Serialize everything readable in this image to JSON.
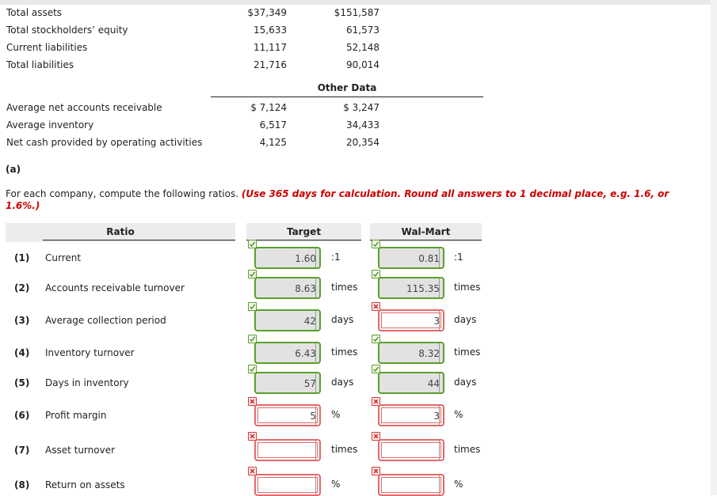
{
  "balance": {
    "rows": [
      {
        "label": "Total assets",
        "target": "$37,349",
        "walmart": "$151,587"
      },
      {
        "label": "Total stockholders’ equity",
        "target": "15,633",
        "walmart": "61,573"
      },
      {
        "label": "Current liabilities",
        "target": "11,117",
        "walmart": "52,148"
      },
      {
        "label": "Total liabilities",
        "target": "21,716",
        "walmart": "90,014"
      }
    ]
  },
  "other": {
    "heading": "Other Data",
    "rows": [
      {
        "label": "Average net accounts receivable",
        "target": "$ 7,124",
        "walmart": "$ 3,247"
      },
      {
        "label": "Average inventory",
        "target": "6,517",
        "walmart": "34,433"
      },
      {
        "label": "Net cash provided by operating activities",
        "target": "4,125",
        "walmart": "20,354"
      }
    ]
  },
  "section": {
    "tag": "(a)",
    "instruction_plain": "For each company, compute the following ratios. ",
    "instruction_red": "(Use 365 days for calculation. Round all answers to 1 decimal place, e.g. 1.6, or 1.6%.)"
  },
  "table": {
    "col_ratio": "Ratio",
    "col_target": "Target",
    "col_walmart": "Wal-Mart",
    "rows": [
      {
        "num": "(1)",
        "name": "Current",
        "target": "1.60",
        "target_status": "ok",
        "target_unit": ":1",
        "walmart": "0.81",
        "walmart_status": "ok",
        "walmart_unit": ":1"
      },
      {
        "num": "(2)",
        "name": "Accounts receivable turnover",
        "target": "8.63",
        "target_status": "ok",
        "target_unit": "times",
        "walmart": "115.35",
        "walmart_status": "ok",
        "walmart_unit": "times"
      },
      {
        "num": "(3)",
        "name": "Average collection period",
        "target": "42",
        "target_status": "ok",
        "target_unit": "days",
        "walmart": "3",
        "walmart_status": "bad",
        "walmart_unit": "days"
      },
      {
        "num": "(4)",
        "name": "Inventory turnover",
        "target": "6.43",
        "target_status": "ok",
        "target_unit": "times",
        "walmart": "8.32",
        "walmart_status": "ok",
        "walmart_unit": "times"
      },
      {
        "num": "(5)",
        "name": "Days in inventory",
        "target": "57",
        "target_status": "ok",
        "target_unit": "days",
        "walmart": "44",
        "walmart_status": "ok",
        "walmart_unit": "days"
      },
      {
        "num": "(6)",
        "name": "Profit margin",
        "target": "5",
        "target_status": "bad",
        "target_unit": "%",
        "walmart": "3",
        "walmart_status": "bad",
        "walmart_unit": "%"
      },
      {
        "num": "(7)",
        "name": "Asset turnover",
        "target": "",
        "target_status": "bad",
        "target_unit": "times",
        "walmart": "",
        "walmart_status": "bad",
        "walmart_unit": "times"
      },
      {
        "num": "(8)",
        "name": "Return on assets",
        "target": "",
        "target_status": "bad",
        "target_unit": "%",
        "walmart": "",
        "walmart_status": "bad",
        "walmart_unit": "%"
      }
    ]
  },
  "colors": {
    "correct": "#5aa02c",
    "incorrect": "#e26a6a",
    "instruction": "#cc0000"
  },
  "icons": {
    "correct": "check-mark-icon",
    "incorrect": "x-mark-icon"
  }
}
